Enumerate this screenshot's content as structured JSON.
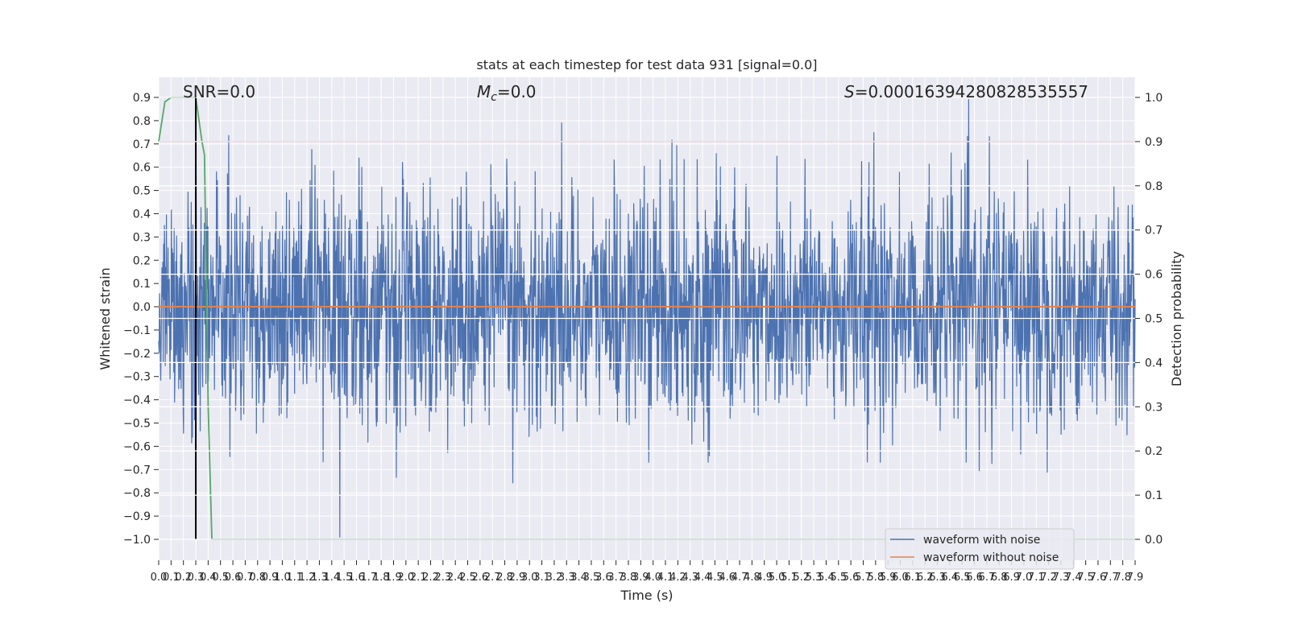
{
  "chart_data": {
    "type": "line",
    "title": "stats at each timestep for test data 931 [signal=0.0]",
    "xlabel": "Time (s)",
    "ylabel": "Whitened strain",
    "y2label": "Detection probability",
    "xlim": [
      0.0,
      7.9
    ],
    "ylim": [
      -1.0,
      0.9
    ],
    "y2lim": [
      0.0,
      1.0
    ],
    "grid": true,
    "legend_position": "lower right",
    "x_ticks": [
      "0.0",
      "0.1",
      "0.2",
      "0.3",
      "0.4",
      "0.5",
      "0.6",
      "0.7",
      "0.8",
      "0.9",
      "1.0",
      "1.1",
      "1.2",
      "1.3",
      "1.4",
      "1.5",
      "1.6",
      "1.7",
      "1.8",
      "1.9",
      "2.0",
      "2.1",
      "2.2",
      "2.3",
      "2.4",
      "2.5",
      "2.6",
      "2.7",
      "2.8",
      "2.9",
      "3.0",
      "3.1",
      "3.2",
      "3.3",
      "3.4",
      "3.5",
      "3.6",
      "3.7",
      "3.8",
      "3.9",
      "4.0",
      "4.1",
      "4.2",
      "4.3",
      "4.4",
      "4.5",
      "4.6",
      "4.7",
      "4.8",
      "4.9",
      "5.0",
      "5.1",
      "5.2",
      "5.3",
      "5.4",
      "5.5",
      "5.6",
      "5.7",
      "5.8",
      "5.9",
      "6.0",
      "6.1",
      "6.2",
      "6.3",
      "6.4",
      "6.5",
      "6.6",
      "6.7",
      "6.8",
      "6.9",
      "7.0",
      "7.1",
      "7.2",
      "7.3",
      "7.4",
      "7.5",
      "7.6",
      "7.7",
      "7.8",
      "7.9"
    ],
    "y_ticks": [
      "0.9",
      "0.8",
      "0.7",
      "0.6",
      "0.5",
      "0.4",
      "0.3",
      "0.2",
      "0.1",
      "0.0",
      "−0.1",
      "−0.2",
      "−0.3",
      "−0.4",
      "−0.5",
      "−0.6",
      "−0.7",
      "−0.8",
      "−0.9",
      "−1.0"
    ],
    "y2_ticks": [
      "1.0",
      "0.9",
      "0.8",
      "0.7",
      "0.6",
      "0.5",
      "0.4",
      "0.3",
      "0.2",
      "0.1",
      "0.0"
    ],
    "annotations": {
      "snr": "SNR=0.0",
      "mc_symbol": "M",
      "mc_sub": "c",
      "mc_value": "=0.0",
      "s_symbol": "S",
      "s_value": "=0.00016394280828535557"
    },
    "series": [
      {
        "name": "waveform with noise",
        "color": "#4c72b0",
        "axis": "left",
        "description": "noise trace, roughly within −1.0 to 0.9",
        "approx_amplitude": 0.6
      },
      {
        "name": "waveform without noise",
        "color": "#dd8452",
        "axis": "left",
        "values_constant": 0.0
      },
      {
        "color": "#55a868",
        "axis": "right",
        "x": [
          0.0,
          0.05,
          0.1,
          0.2,
          0.3,
          0.35,
          0.37,
          0.4,
          0.43,
          7.9
        ],
        "values": [
          0.9,
          0.99,
          1.0,
          1.0,
          1.0,
          0.9,
          0.87,
          0.3,
          0.0,
          0.0
        ]
      },
      {
        "color": "#c44e52",
        "axis": "right",
        "values_constant": 0.9
      },
      {
        "color": "#000000",
        "axis": "left",
        "x_constant": 0.3,
        "y_range": [
          -1.0,
          0.9
        ]
      }
    ]
  }
}
